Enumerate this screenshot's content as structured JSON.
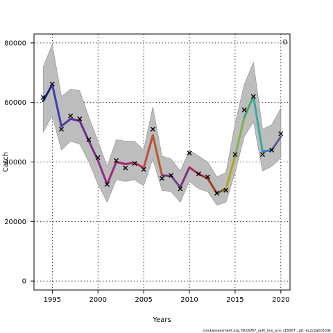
{
  "chart_data": {
    "type": "line",
    "title": "",
    "xlabel": "Years",
    "ylabel": "Catch",
    "xlim": [
      1993,
      2021
    ],
    "ylim": [
      -3000,
      83000
    ],
    "xticks": [
      1995,
      2000,
      2005,
      2010,
      2015,
      2020
    ],
    "yticks": [
      0,
      20000,
      40000,
      60000,
      80000
    ],
    "grid": true,
    "corner_label": "0",
    "footer": "stockassessment.org, NCOD67_split_tsis_aco, r16007 , git: ec2c2a0c6dde",
    "band_color": "#bdbdbd",
    "band": {
      "x": [
        1994,
        1995,
        1996,
        1997,
        1998,
        1999,
        2000,
        2001,
        2002,
        2003,
        2004,
        2005,
        2006,
        2007,
        2008,
        2009,
        2010,
        2011,
        2012,
        2013,
        2014,
        2015,
        2016,
        2017,
        2018,
        2019,
        2020
      ],
      "upper": [
        72000,
        79500,
        62000,
        64500,
        64000,
        55000,
        47000,
        38500,
        47500,
        47000,
        47000,
        44000,
        58500,
        42000,
        41000,
        37000,
        44000,
        42000,
        40000,
        35000,
        36500,
        53000,
        66000,
        73500,
        51000,
        52500,
        58000
      ],
      "lower": [
        50000,
        55500,
        44000,
        47000,
        46000,
        40000,
        32500,
        26500,
        34000,
        33500,
        34000,
        32000,
        41000,
        30500,
        30000,
        26500,
        33500,
        31000,
        30000,
        25500,
        26500,
        36500,
        48500,
        53500,
        37000,
        38500,
        41500
      ]
    },
    "series": [
      {
        "x": [
          1994,
          1995,
          1996,
          1997,
          1998,
          1999,
          2000,
          2001,
          2002,
          2003,
          2004,
          2005,
          2006,
          2007,
          2008,
          2009,
          2010,
          2011,
          2012,
          2013,
          2014,
          2015,
          2016,
          2017,
          2018,
          2019,
          2020
        ],
        "y": [
          60500,
          66000,
          52000,
          54500,
          53800,
          47000,
          40500,
          32500,
          40000,
          39300,
          39800,
          38000,
          49000,
          35500,
          35300,
          31500,
          38200,
          36000,
          34500,
          29500,
          31000,
          42000,
          55000,
          62000,
          43500,
          44000,
          48500
        ],
        "colors": [
          "#1a237e",
          "#3f3faa",
          "#4b3ba0",
          "#5a2e8f",
          "#6a2a8a",
          "#7b2f88",
          "#8c2f80",
          "#9b2a78",
          "#a8236e",
          "#b0246b",
          "#b53061",
          "#b94a45",
          "#b35a2e",
          "#7a3c6a",
          "#6b3f8a",
          "#7c2d78",
          "#a8265a",
          "#a82d3f",
          "#9a3a22",
          "#7a5a18",
          "#a8a820",
          "#7fb34a",
          "#3faa6a",
          "#38a8a0",
          "#3a7ac8",
          "#5a5a8a",
          "#2a2a2a"
        ],
        "width": 3
      }
    ],
    "observations": {
      "x": [
        1994,
        1995,
        1996,
        1997,
        1998,
        1999,
        2000,
        2001,
        2002,
        2003,
        2004,
        2005,
        2006,
        2007,
        2008,
        2009,
        2010,
        2011,
        2012,
        2013,
        2014,
        2015,
        2016,
        2017,
        2018,
        2019,
        2020
      ],
      "y": [
        61700,
        66200,
        51000,
        55500,
        54500,
        47500,
        41500,
        32500,
        40500,
        38000,
        39500,
        37500,
        51000,
        34500,
        35500,
        31000,
        43000,
        36000,
        35000,
        29500,
        30500,
        42500,
        57500,
        62000,
        42500,
        44000,
        49500
      ]
    }
  }
}
